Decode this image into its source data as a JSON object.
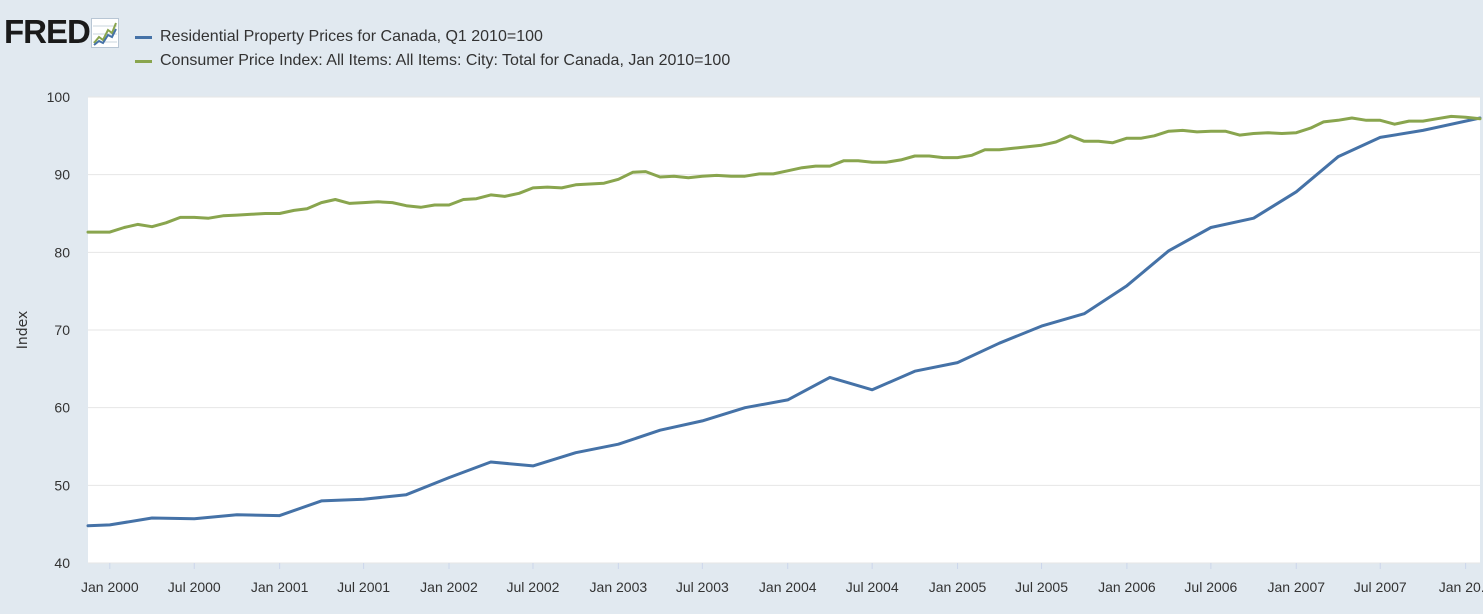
{
  "brand": {
    "logo_text": "FRED",
    "logo_icon": "line-chart-icon"
  },
  "chart_data": {
    "type": "line",
    "title": "",
    "xlabel": "",
    "ylabel": "Index",
    "ylim": [
      40,
      100
    ],
    "yticks": [
      40,
      50,
      60,
      70,
      80,
      90,
      100
    ],
    "xlim": [
      "1999-11-15",
      "2008-02-01"
    ],
    "xticks": [
      {
        "date": "2000-01-01",
        "label": "Jan 2000"
      },
      {
        "date": "2000-07-01",
        "label": "Jul 2000"
      },
      {
        "date": "2001-01-01",
        "label": "Jan 2001"
      },
      {
        "date": "2001-07-01",
        "label": "Jul 2001"
      },
      {
        "date": "2002-01-01",
        "label": "Jan 2002"
      },
      {
        "date": "2002-07-01",
        "label": "Jul 2002"
      },
      {
        "date": "2003-01-01",
        "label": "Jan 2003"
      },
      {
        "date": "2003-07-01",
        "label": "Jul 2003"
      },
      {
        "date": "2004-01-01",
        "label": "Jan 2004"
      },
      {
        "date": "2004-07-01",
        "label": "Jul 2004"
      },
      {
        "date": "2005-01-01",
        "label": "Jan 2005"
      },
      {
        "date": "2005-07-01",
        "label": "Jul 2005"
      },
      {
        "date": "2006-01-01",
        "label": "Jan 2006"
      },
      {
        "date": "2006-07-01",
        "label": "Jul 2006"
      },
      {
        "date": "2007-01-01",
        "label": "Jan 2007"
      },
      {
        "date": "2007-07-01",
        "label": "Jul 2007"
      },
      {
        "date": "2008-01-01",
        "label": "Jan 20..."
      }
    ],
    "grid": true,
    "legend": "top-left",
    "series": [
      {
        "name": "Residential Property Prices for Canada, Q1 2010=100",
        "color": "#4572a7",
        "points": [
          [
            "1999-11-15",
            44.8
          ],
          [
            "2000-01-01",
            44.9
          ],
          [
            "2000-04-01",
            45.8
          ],
          [
            "2000-07-01",
            45.7
          ],
          [
            "2000-10-01",
            46.2
          ],
          [
            "2001-01-01",
            46.1
          ],
          [
            "2001-04-01",
            48.0
          ],
          [
            "2001-07-01",
            48.2
          ],
          [
            "2001-10-01",
            48.8
          ],
          [
            "2002-01-01",
            51.0
          ],
          [
            "2002-04-01",
            53.0
          ],
          [
            "2002-07-01",
            52.5
          ],
          [
            "2002-10-01",
            54.2
          ],
          [
            "2003-01-01",
            55.3
          ],
          [
            "2003-04-01",
            57.1
          ],
          [
            "2003-07-01",
            58.3
          ],
          [
            "2003-10-01",
            60.0
          ],
          [
            "2004-01-01",
            61.0
          ],
          [
            "2004-04-01",
            63.9
          ],
          [
            "2004-07-01",
            62.3
          ],
          [
            "2004-10-01",
            64.7
          ],
          [
            "2005-01-01",
            65.8
          ],
          [
            "2005-04-01",
            68.3
          ],
          [
            "2005-07-01",
            70.5
          ],
          [
            "2005-10-01",
            72.1
          ],
          [
            "2006-01-01",
            75.7
          ],
          [
            "2006-04-01",
            80.2
          ],
          [
            "2006-07-01",
            83.2
          ],
          [
            "2006-10-01",
            84.4
          ],
          [
            "2007-01-01",
            87.8
          ],
          [
            "2007-04-01",
            92.3
          ],
          [
            "2007-07-01",
            94.8
          ],
          [
            "2007-10-01",
            95.7
          ],
          [
            "2008-02-01",
            97.3
          ]
        ]
      },
      {
        "name": "Consumer Price Index: All Items: All Items: City: Total for Canada, Jan 2010=100",
        "color": "#89a54e",
        "points": [
          [
            "1999-11-15",
            82.6
          ],
          [
            "1999-12-01",
            82.6
          ],
          [
            "2000-01-01",
            82.6
          ],
          [
            "2000-02-01",
            83.2
          ],
          [
            "2000-03-01",
            83.6
          ],
          [
            "2000-04-01",
            83.3
          ],
          [
            "2000-05-01",
            83.8
          ],
          [
            "2000-06-01",
            84.5
          ],
          [
            "2000-07-01",
            84.5
          ],
          [
            "2000-08-01",
            84.4
          ],
          [
            "2000-09-01",
            84.7
          ],
          [
            "2000-10-01",
            84.8
          ],
          [
            "2000-11-01",
            84.9
          ],
          [
            "2000-12-01",
            85.0
          ],
          [
            "2001-01-01",
            85.0
          ],
          [
            "2001-02-01",
            85.4
          ],
          [
            "2001-03-01",
            85.6
          ],
          [
            "2001-04-01",
            86.4
          ],
          [
            "2001-05-01",
            86.8
          ],
          [
            "2001-06-01",
            86.3
          ],
          [
            "2001-07-01",
            86.4
          ],
          [
            "2001-08-01",
            86.5
          ],
          [
            "2001-09-01",
            86.4
          ],
          [
            "2001-10-01",
            86.0
          ],
          [
            "2001-11-01",
            85.8
          ],
          [
            "2001-12-01",
            86.1
          ],
          [
            "2002-01-01",
            86.1
          ],
          [
            "2002-02-01",
            86.8
          ],
          [
            "2002-03-01",
            86.9
          ],
          [
            "2002-04-01",
            87.4
          ],
          [
            "2002-05-01",
            87.2
          ],
          [
            "2002-06-01",
            87.6
          ],
          [
            "2002-07-01",
            88.3
          ],
          [
            "2002-08-01",
            88.4
          ],
          [
            "2002-09-01",
            88.3
          ],
          [
            "2002-10-01",
            88.7
          ],
          [
            "2002-11-01",
            88.8
          ],
          [
            "2002-12-01",
            88.9
          ],
          [
            "2003-01-01",
            89.4
          ],
          [
            "2003-02-01",
            90.3
          ],
          [
            "2003-03-01",
            90.4
          ],
          [
            "2003-04-01",
            89.7
          ],
          [
            "2003-05-01",
            89.8
          ],
          [
            "2003-06-01",
            89.6
          ],
          [
            "2003-07-01",
            89.8
          ],
          [
            "2003-08-01",
            89.9
          ],
          [
            "2003-09-01",
            89.8
          ],
          [
            "2003-10-01",
            89.8
          ],
          [
            "2003-11-01",
            90.1
          ],
          [
            "2003-12-01",
            90.1
          ],
          [
            "2004-01-01",
            90.5
          ],
          [
            "2004-02-01",
            90.9
          ],
          [
            "2004-03-01",
            91.1
          ],
          [
            "2004-04-01",
            91.1
          ],
          [
            "2004-05-01",
            91.8
          ],
          [
            "2004-06-01",
            91.8
          ],
          [
            "2004-07-01",
            91.6
          ],
          [
            "2004-08-01",
            91.6
          ],
          [
            "2004-09-01",
            91.9
          ],
          [
            "2004-10-01",
            92.4
          ],
          [
            "2004-11-01",
            92.4
          ],
          [
            "2004-12-01",
            92.2
          ],
          [
            "2005-01-01",
            92.2
          ],
          [
            "2005-02-01",
            92.5
          ],
          [
            "2005-03-01",
            93.2
          ],
          [
            "2005-04-01",
            93.2
          ],
          [
            "2005-05-01",
            93.4
          ],
          [
            "2005-06-01",
            93.6
          ],
          [
            "2005-07-01",
            93.8
          ],
          [
            "2005-08-01",
            94.2
          ],
          [
            "2005-09-01",
            95.0
          ],
          [
            "2005-10-01",
            94.3
          ],
          [
            "2005-11-01",
            94.3
          ],
          [
            "2005-12-01",
            94.1
          ],
          [
            "2006-01-01",
            94.7
          ],
          [
            "2006-02-01",
            94.7
          ],
          [
            "2006-03-01",
            95.0
          ],
          [
            "2006-04-01",
            95.6
          ],
          [
            "2006-05-01",
            95.7
          ],
          [
            "2006-06-01",
            95.5
          ],
          [
            "2006-07-01",
            95.6
          ],
          [
            "2006-08-01",
            95.6
          ],
          [
            "2006-09-01",
            95.1
          ],
          [
            "2006-10-01",
            95.3
          ],
          [
            "2006-11-01",
            95.4
          ],
          [
            "2006-12-01",
            95.3
          ],
          [
            "2007-01-01",
            95.4
          ],
          [
            "2007-02-01",
            96.0
          ],
          [
            "2007-03-01",
            96.8
          ],
          [
            "2007-04-01",
            97.0
          ],
          [
            "2007-05-01",
            97.3
          ],
          [
            "2007-06-01",
            97.0
          ],
          [
            "2007-07-01",
            97.0
          ],
          [
            "2007-08-01",
            96.5
          ],
          [
            "2007-09-01",
            96.9
          ],
          [
            "2007-10-01",
            96.9
          ],
          [
            "2007-11-01",
            97.2
          ],
          [
            "2007-12-01",
            97.5
          ],
          [
            "2008-01-01",
            97.4
          ],
          [
            "2008-02-01",
            97.2
          ]
        ]
      }
    ]
  }
}
